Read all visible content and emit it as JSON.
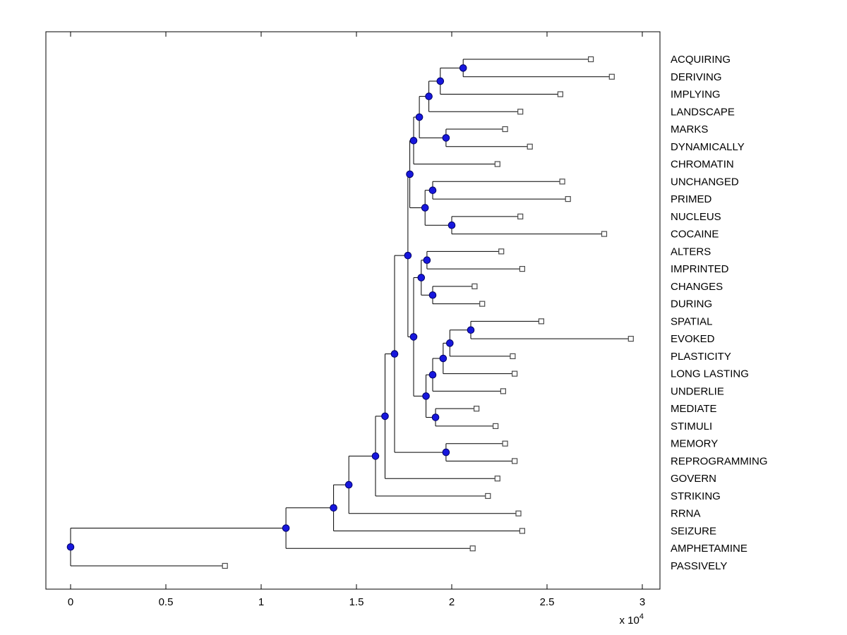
{
  "figure": {
    "background": "#ffffff"
  },
  "chart_data": {
    "type": "dendrogram",
    "orientation": "root-left-leaves-right",
    "title": "",
    "xlabel": "",
    "ylabel": "",
    "grid": false,
    "legend": null,
    "x_axis": {
      "range": [
        0,
        30000
      ],
      "tick_values": [
        0,
        5000,
        10000,
        15000,
        20000,
        25000,
        30000
      ],
      "tick_labels": [
        "0",
        "0.5",
        "1",
        "1.5",
        "2",
        "2.5",
        "3"
      ],
      "scale_label_base": "x 10",
      "scale_label_exponent": "4"
    },
    "colors": {
      "line": "#000000",
      "axis": "#000000",
      "text": "#000000",
      "node_fill": "#1717dd",
      "node_edge": "#000066",
      "leaf_fill": "#ffffff",
      "leaf_edge": "#4a4a4a",
      "background": "#ffffff"
    },
    "leaves": [
      {
        "label": "ACQUIRING",
        "value": 27300
      },
      {
        "label": "DERIVING",
        "value": 28400
      },
      {
        "label": "IMPLYING",
        "value": 25700
      },
      {
        "label": "LANDSCAPE",
        "value": 23600
      },
      {
        "label": "MARKS",
        "value": 22800
      },
      {
        "label": "DYNAMICALLY",
        "value": 24100
      },
      {
        "label": "CHROMATIN",
        "value": 22400
      },
      {
        "label": "UNCHANGED",
        "value": 25800
      },
      {
        "label": "PRIMED",
        "value": 26100
      },
      {
        "label": "NUCLEUS",
        "value": 23600
      },
      {
        "label": "COCAINE",
        "value": 28000
      },
      {
        "label": "ALTERS",
        "value": 22600
      },
      {
        "label": "IMPRINTED",
        "value": 23700
      },
      {
        "label": "CHANGES",
        "value": 21200
      },
      {
        "label": "DURING",
        "value": 21600
      },
      {
        "label": "SPATIAL",
        "value": 24700
      },
      {
        "label": "EVOKED",
        "value": 29400
      },
      {
        "label": "PLASTICITY",
        "value": 23200
      },
      {
        "label": "LONG LASTING",
        "value": 23300
      },
      {
        "label": "UNDERLIE",
        "value": 22700
      },
      {
        "label": "MEDIATE",
        "value": 21300
      },
      {
        "label": "STIMULI",
        "value": 22300
      },
      {
        "label": "MEMORY",
        "value": 22800
      },
      {
        "label": "REPROGRAMMING",
        "value": 23300
      },
      {
        "label": "GOVERN",
        "value": 22400
      },
      {
        "label": "STRIKING",
        "value": 21900
      },
      {
        "label": "RRNA",
        "value": 23500
      },
      {
        "label": "SEIZURE",
        "value": 23700
      },
      {
        "label": "AMPHETAMINE",
        "value": 21100
      },
      {
        "label": "PASSIVELY",
        "value": 8100
      }
    ],
    "tree": {
      "d": 0,
      "c": [
        {
          "d": 11300,
          "c": [
            {
              "d": 13800,
              "c": [
                {
                  "d": 14600,
                  "c": [
                    {
                      "d": 16000,
                      "c": [
                        {
                          "d": 16500,
                          "c": [
                            {
                              "d": 17000,
                              "c": [
                                {
                                  "d": 17700,
                                  "c": [
                                    {
                                      "d": 17800,
                                      "c": [
                                        {
                                          "d": 18000,
                                          "c": [
                                            {
                                              "d": 18300,
                                              "c": [
                                                {
                                                  "d": 18800,
                                                  "c": [
                                                    {
                                                      "d": 19400,
                                                      "c": [
                                                        {
                                                          "d": 20600,
                                                          "c": [
                                                            "ACQUIRING",
                                                            "DERIVING"
                                                          ]
                                                        },
                                                        "IMPLYING"
                                                      ]
                                                    },
                                                    "LANDSCAPE"
                                                  ]
                                                },
                                                {
                                                  "d": 19700,
                                                  "c": [
                                                    "MARKS",
                                                    "DYNAMICALLY"
                                                  ]
                                                }
                                              ]
                                            },
                                            "CHROMATIN"
                                          ]
                                        },
                                        {
                                          "d": 18600,
                                          "c": [
                                            {
                                              "d": 19000,
                                              "c": [
                                                "UNCHANGED",
                                                "PRIMED"
                                              ]
                                            },
                                            {
                                              "d": 20000,
                                              "c": [
                                                "NUCLEUS",
                                                "COCAINE"
                                              ]
                                            }
                                          ]
                                        }
                                      ]
                                    },
                                    {
                                      "d": 18000,
                                      "c": [
                                        {
                                          "d": 18400,
                                          "c": [
                                            {
                                              "d": 18700,
                                              "c": [
                                                "ALTERS",
                                                "IMPRINTED"
                                              ]
                                            },
                                            {
                                              "d": 19000,
                                              "c": [
                                                "CHANGES",
                                                "DURING"
                                              ]
                                            }
                                          ]
                                        },
                                        {
                                          "d": 18650,
                                          "c": [
                                            {
                                              "d": 19000,
                                              "c": [
                                                {
                                                  "d": 19550,
                                                  "c": [
                                                    {
                                                      "d": 19900,
                                                      "c": [
                                                        {
                                                          "d": 21000,
                                                          "c": [
                                                            "SPATIAL",
                                                            "EVOKED"
                                                          ]
                                                        },
                                                        "PLASTICITY"
                                                      ]
                                                    },
                                                    "LONG LASTING"
                                                  ]
                                                },
                                                "UNDERLIE"
                                              ]
                                            },
                                            {
                                              "d": 19150,
                                              "c": [
                                                "MEDIATE",
                                                "STIMULI"
                                              ]
                                            }
                                          ]
                                        }
                                      ]
                                    }
                                  ]
                                },
                                {
                                  "d": 19700,
                                  "c": [
                                    "MEMORY",
                                    "REPROGRAMMING"
                                  ]
                                }
                              ]
                            },
                            "GOVERN"
                          ]
                        },
                        "STRIKING"
                      ]
                    },
                    "RRNA"
                  ]
                },
                "SEIZURE"
              ]
            },
            "AMPHETAMINE"
          ]
        },
        "PASSIVELY"
      ]
    }
  }
}
